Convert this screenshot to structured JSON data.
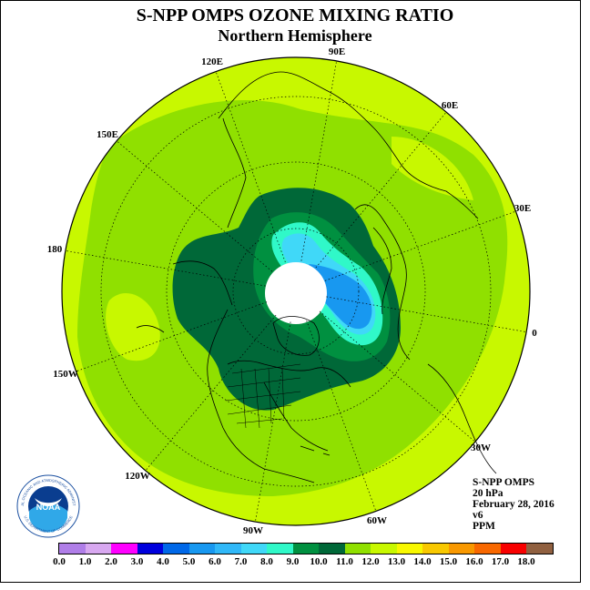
{
  "title": "S-NPP OMPS OZONE MIXING RATIO",
  "subtitle": "Northern Hemisphere",
  "longitude_labels": [
    "90E",
    "60E",
    "30E",
    "0",
    "30W",
    "60W",
    "90W",
    "120W",
    "150W",
    "180",
    "150E",
    "120E"
  ],
  "info": {
    "instrument": "S-NPP OMPS",
    "pressure": "20 hPa",
    "date": "February 28, 2016",
    "version": "v6",
    "units": "PPM"
  },
  "colorbar": {
    "ticks": [
      "0.0",
      "1.0",
      "2.0",
      "3.0",
      "4.0",
      "5.0",
      "6.0",
      "7.0",
      "8.0",
      "9.0",
      "10.0",
      "11.0",
      "12.0",
      "13.0",
      "14.0",
      "15.0",
      "16.0",
      "17.0",
      "18.0"
    ],
    "colors": [
      "#b07ee8",
      "#d8a8f0",
      "#ff00ff",
      "#0000dd",
      "#0068e8",
      "#1898f0",
      "#30b8f8",
      "#40d8f8",
      "#30f8c8",
      "#009040",
      "#006838",
      "#90e000",
      "#c8f800",
      "#f8f800",
      "#f8c800",
      "#f89800",
      "#f86800",
      "#f80000",
      "#906040"
    ]
  },
  "logo": {
    "text": "NOAA",
    "ring_text": "NATIONAL OCEANIC AND ATMOSPHERIC ADMINISTRATION",
    "ring_text_bottom": "U.S. DEPARTMENT OF COMMERCE"
  }
}
